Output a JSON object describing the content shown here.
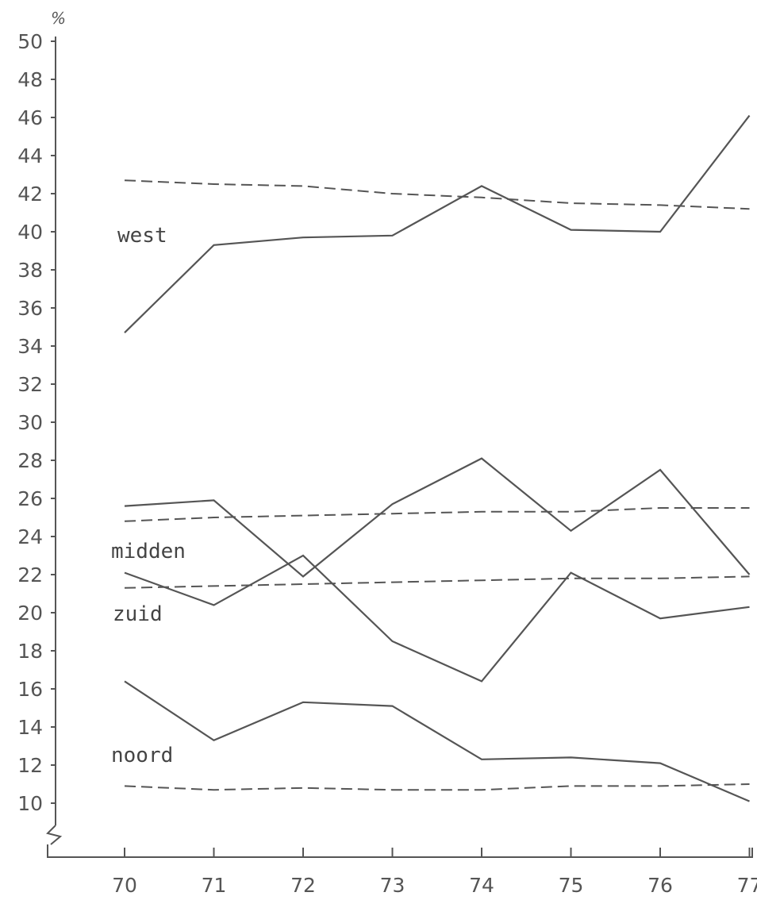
{
  "chart_data": {
    "type": "line",
    "unit_label": "%",
    "x": [
      "70",
      "71",
      "72",
      "73",
      "74",
      "75",
      "76",
      "77"
    ],
    "x_tick_labels": [
      "70",
      "71",
      "72",
      "73",
      "74",
      "75",
      "76",
      "77"
    ],
    "y_tick_labels": [
      "10",
      "12",
      "14",
      "16",
      "18",
      "20",
      "22",
      "24",
      "26",
      "28",
      "30",
      "32",
      "34",
      "36",
      "38",
      "40",
      "42",
      "44",
      "46",
      "48",
      "50"
    ],
    "ylim": [
      10,
      50
    ],
    "y_axis_break": true,
    "grid": false,
    "legend": "none",
    "region_labels": [
      "west",
      "midden",
      "zuid",
      "noord"
    ],
    "series": [
      {
        "label_ref": 0,
        "style": "solid",
        "values": [
          34.7,
          39.3,
          39.7,
          39.8,
          42.4,
          40.1,
          40.0,
          46.1
        ]
      },
      {
        "label_ref": 0,
        "style": "dashed",
        "values": [
          42.7,
          42.5,
          42.4,
          42.0,
          41.8,
          41.5,
          41.4,
          41.2
        ]
      },
      {
        "label_ref": 1,
        "style": "solid",
        "values": [
          25.6,
          25.9,
          21.9,
          25.7,
          28.1,
          24.3,
          27.5,
          22.0
        ]
      },
      {
        "label_ref": 1,
        "style": "dashed",
        "values": [
          24.8,
          25.0,
          25.1,
          25.2,
          25.3,
          25.3,
          25.5,
          25.5
        ]
      },
      {
        "label_ref": 2,
        "style": "solid",
        "values": [
          22.1,
          20.4,
          23.0,
          18.5,
          16.4,
          22.1,
          19.7,
          20.3
        ]
      },
      {
        "label_ref": 2,
        "style": "dashed",
        "values": [
          21.3,
          21.4,
          21.5,
          21.6,
          21.7,
          21.8,
          21.8,
          21.9
        ]
      },
      {
        "label_ref": 3,
        "style": "solid",
        "values": [
          16.4,
          13.3,
          15.3,
          15.1,
          12.3,
          12.4,
          12.1,
          10.1
        ]
      },
      {
        "label_ref": 3,
        "style": "dashed",
        "values": [
          10.9,
          10.7,
          10.8,
          10.7,
          10.7,
          10.9,
          10.9,
          11.0
        ]
      }
    ]
  }
}
